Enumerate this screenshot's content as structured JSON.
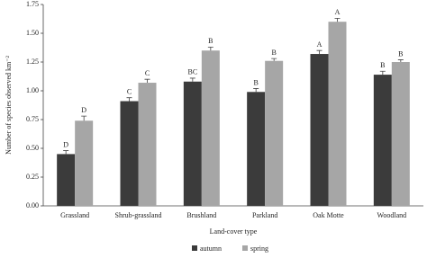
{
  "chart_data": {
    "type": "bar",
    "x_label": "Land-cover type",
    "y_label": "Number of species observed km⁻²",
    "categories": [
      "Grassland",
      "Shrub-grassland",
      "Brushland",
      "Parkland",
      "Oak Motte",
      "Woodland"
    ],
    "series": [
      {
        "name": "autumn",
        "color": "#3b3b3b",
        "values": [
          0.45,
          0.91,
          1.08,
          0.99,
          1.32,
          1.14
        ],
        "errors": [
          0.03,
          0.03,
          0.03,
          0.03,
          0.03,
          0.03
        ],
        "labels": [
          "D",
          "C",
          "BC",
          "B",
          "A",
          "B"
        ]
      },
      {
        "name": "spring",
        "color": "#a6a6a6",
        "values": [
          0.74,
          1.07,
          1.35,
          1.26,
          1.6,
          1.25
        ],
        "errors": [
          0.04,
          0.03,
          0.03,
          0.02,
          0.03,
          0.02
        ],
        "labels": [
          "D",
          "C",
          "B",
          "B",
          "A",
          "B"
        ]
      }
    ],
    "ylim": [
      0,
      1.75
    ],
    "yticks": [
      {
        "value": 0,
        "label": "0.00"
      },
      {
        "value": 0.25,
        "label": "0.25"
      },
      {
        "value": 0.5,
        "label": "0.50"
      },
      {
        "value": 0.75,
        "label": "0.75"
      },
      {
        "value": 1,
        "label": "1.00"
      },
      {
        "value": 1.25,
        "label": "1.25"
      },
      {
        "value": 1.5,
        "label": "1.50"
      },
      {
        "value": 1.75,
        "label": "1.75"
      }
    ],
    "legend": "bottom"
  }
}
